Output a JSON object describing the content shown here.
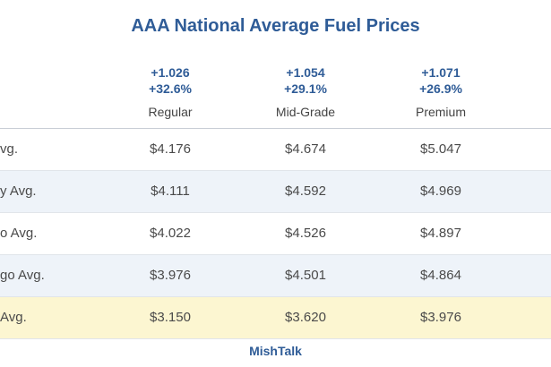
{
  "title": "AAA National Average Fuel Prices",
  "columns": [
    {
      "change": "+1.026",
      "percent": "+32.6%",
      "name": "Regular"
    },
    {
      "change": "+1.054",
      "percent": "+29.1%",
      "name": "Mid-Grade"
    },
    {
      "change": "+1.071",
      "percent": "+26.9%",
      "name": "Premium"
    }
  ],
  "rows": [
    {
      "label": "vg.",
      "values": [
        "$4.176",
        "$4.674",
        "$5.047"
      ]
    },
    {
      "label": "y Avg.",
      "values": [
        "$4.111",
        "$4.592",
        "$4.969"
      ]
    },
    {
      "label": "o Avg.",
      "values": [
        "$4.022",
        "$4.526",
        "$4.897"
      ]
    },
    {
      "label": "go Avg.",
      "values": [
        "$3.976",
        "$4.501",
        "$4.864"
      ]
    },
    {
      "label": "Avg.",
      "values": [
        "$3.150",
        "$3.620",
        "$3.976"
      ]
    }
  ],
  "footer": "MishTalk",
  "colors": {
    "accent": "#2f5c97",
    "alt_row": "#eef3f9",
    "highlight_row": "#fcf6d1"
  }
}
